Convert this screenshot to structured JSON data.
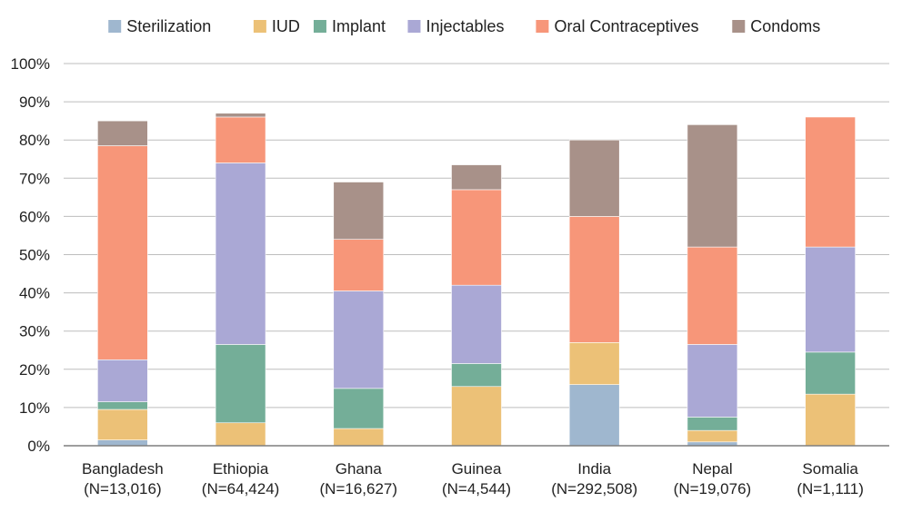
{
  "chart_data": {
    "type": "stacked-bar",
    "title": "",
    "xlabel": "",
    "ylabel": "",
    "ylim": [
      0,
      100
    ],
    "y_ticks": [
      "0%",
      "10%",
      "20%",
      "30%",
      "40%",
      "50%",
      "60%",
      "70%",
      "80%",
      "90%",
      "100%"
    ],
    "grid": true,
    "legend_position": "top",
    "categories": [
      {
        "name": "Bangladesh",
        "n": "(N=13,016)"
      },
      {
        "name": "Ethiopia",
        "n": "(N=64,424)"
      },
      {
        "name": "Ghana",
        "n": "(N=16,627)"
      },
      {
        "name": "Guinea",
        "n": "(N=4,544)"
      },
      {
        "name": "India",
        "n": "(N=292,508)"
      },
      {
        "name": "Nepal",
        "n": "(N=19,076)"
      },
      {
        "name": "Somalia",
        "n": "(N=1,111)"
      }
    ],
    "series": [
      {
        "name": "Sterilization",
        "color": "#9fb7cf",
        "values": [
          1.5,
          0,
          0,
          0,
          16,
          1,
          0
        ]
      },
      {
        "name": "IUD",
        "color": "#ecc177",
        "values": [
          8,
          6,
          4.5,
          15.5,
          11,
          3,
          13.5
        ]
      },
      {
        "name": "Implant",
        "color": "#74ae98",
        "values": [
          2,
          20.5,
          10.5,
          6,
          0,
          3.5,
          11
        ]
      },
      {
        "name": "Injectables",
        "color": "#aaa8d5",
        "values": [
          11,
          47.5,
          25.5,
          20.5,
          0,
          19,
          27.5
        ]
      },
      {
        "name": "Oral Contraceptives",
        "color": "#f79679",
        "values": [
          56,
          12,
          13.5,
          25,
          33,
          25.5,
          34
        ]
      },
      {
        "name": "Condoms",
        "color": "#a89189",
        "values": [
          6.5,
          1,
          15,
          6.5,
          20,
          32,
          0
        ]
      }
    ]
  }
}
